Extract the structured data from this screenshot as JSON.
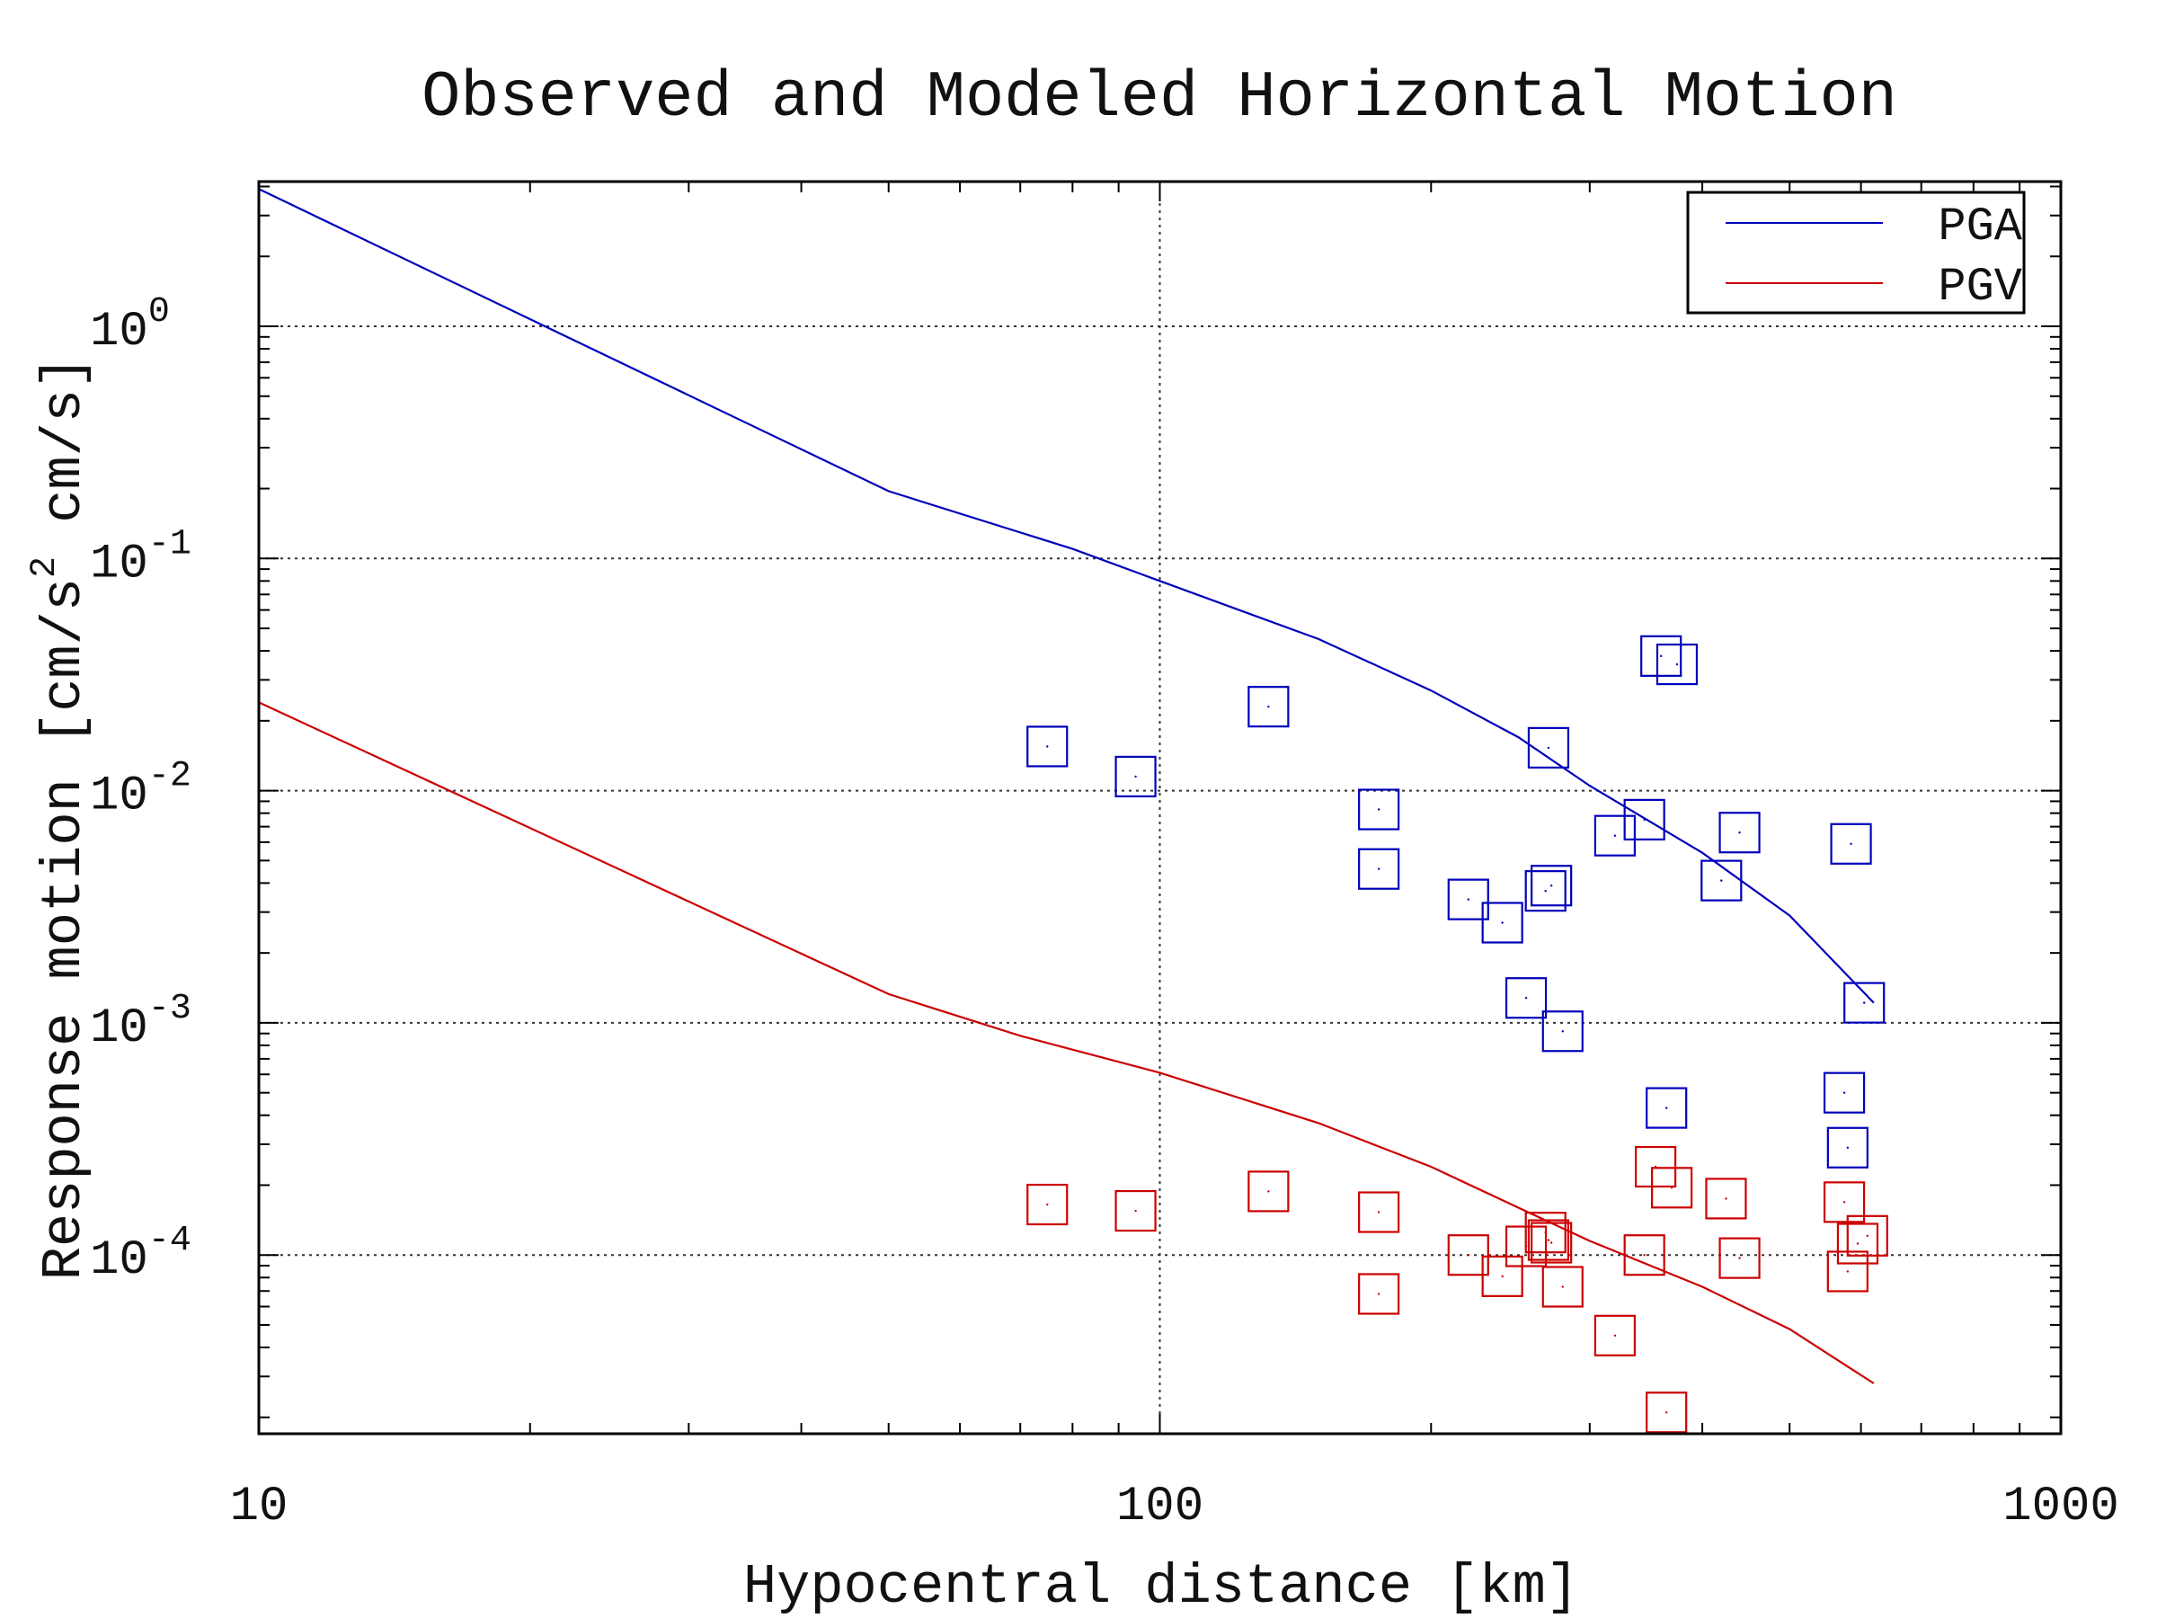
{
  "chart_data": {
    "type": "scatter",
    "title": "Observed and Modeled Horizontal Motion",
    "xlabel": "Hypocentral distance [km]",
    "ylabel": "Response motion  [cm/s",
    "ylabel_sup": "2",
    "ylabel_tail": "  cm/s]",
    "x_scale": "log",
    "y_scale": "log",
    "xlim": [
      10,
      1000
    ],
    "ylim": [
      1.7e-05,
      4.2
    ],
    "grid": true,
    "x_ticks": [
      {
        "value": 10,
        "label": "10"
      },
      {
        "value": 100,
        "label": "100"
      },
      {
        "value": 1000,
        "label": "1000"
      }
    ],
    "y_ticks": [
      {
        "value": 1,
        "base": "10",
        "exp": "0"
      },
      {
        "value": 0.1,
        "base": "10",
        "exp": "-1"
      },
      {
        "value": 0.01,
        "base": "10",
        "exp": "-2"
      },
      {
        "value": 0.001,
        "base": "10",
        "exp": "-3"
      },
      {
        "value": 0.0001,
        "base": "10",
        "exp": "-4"
      }
    ],
    "legend": {
      "position": "top-right",
      "entries": [
        {
          "label": "PGA",
          "color": "#0000bb"
        },
        {
          "label": "PGV",
          "color": "#cc0000"
        }
      ]
    },
    "series": [
      {
        "name": "PGA",
        "kind": "line",
        "color": "#0000bb",
        "points": [
          [
            10,
            3.9
          ],
          [
            50,
            0.195
          ],
          [
            80,
            0.11
          ],
          [
            100,
            0.08
          ],
          [
            150,
            0.045
          ],
          [
            200,
            0.027
          ],
          [
            250,
            0.017
          ],
          [
            300,
            0.0105
          ],
          [
            400,
            0.0054
          ],
          [
            500,
            0.0029
          ],
          [
            620,
            0.00122
          ]
        ]
      },
      {
        "name": "PGV",
        "kind": "line",
        "color": "#cc0000",
        "points": [
          [
            10,
            0.024
          ],
          [
            50,
            0.00133
          ],
          [
            70,
            0.00088
          ],
          [
            100,
            0.00061
          ],
          [
            150,
            0.00037
          ],
          [
            200,
            0.00024
          ],
          [
            250,
            0.00016
          ],
          [
            300,
            0.000115
          ],
          [
            400,
            7.3e-05
          ],
          [
            500,
            4.8e-05
          ],
          [
            620,
            2.8e-05
          ]
        ]
      },
      {
        "name": "PGA observed",
        "kind": "markers",
        "color": "#0000bb",
        "points": [
          [
            75,
            0.0155
          ],
          [
            94,
            0.0115
          ],
          [
            132,
            0.023
          ],
          [
            175,
            0.0083
          ],
          [
            175,
            0.0046
          ],
          [
            220,
            0.0034
          ],
          [
            240,
            0.0027
          ],
          [
            255,
            0.00128
          ],
          [
            270,
            0.0153
          ],
          [
            268,
            0.0037
          ],
          [
            272,
            0.0039
          ],
          [
            280,
            0.00092
          ],
          [
            320,
            0.0064
          ],
          [
            345,
            0.0075
          ],
          [
            360,
            0.038
          ],
          [
            375,
            0.035
          ],
          [
            420,
            0.0041
          ],
          [
            440,
            0.0066
          ],
          [
            585,
            0.0059
          ],
          [
            605,
            0.00122
          ],
          [
            575,
            0.0005
          ],
          [
            580,
            0.00029
          ],
          [
            365,
            0.00043
          ]
        ]
      },
      {
        "name": "PGV observed",
        "kind": "markers",
        "color": "#cc0000",
        "points": [
          [
            75,
            0.000165
          ],
          [
            94,
            0.000155
          ],
          [
            132,
            0.000188
          ],
          [
            175,
            0.000153
          ],
          [
            175,
            6.8e-05
          ],
          [
            220,
            0.0001
          ],
          [
            240,
            8.1e-05
          ],
          [
            255,
            0.000109
          ],
          [
            268,
            0.000125
          ],
          [
            270,
            0.000116
          ],
          [
            272,
            0.000113
          ],
          [
            280,
            7.3e-05
          ],
          [
            320,
            4.5e-05
          ],
          [
            345,
            0.0001
          ],
          [
            355,
            0.00024
          ],
          [
            370,
            0.000195
          ],
          [
            365,
            2.1e-05
          ],
          [
            425,
            0.000175
          ],
          [
            440,
            9.7e-05
          ],
          [
            575,
            0.000169
          ],
          [
            580,
            8.5e-05
          ],
          [
            595,
            0.000112
          ],
          [
            610,
            0.000121
          ]
        ]
      }
    ]
  }
}
